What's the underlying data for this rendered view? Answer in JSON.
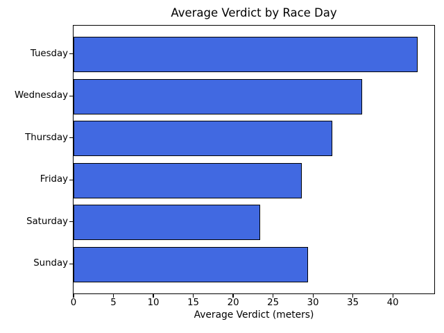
{
  "chart_data": {
    "type": "bar",
    "orientation": "horizontal",
    "title": "Average Verdict by Race Day",
    "xlabel": "Average Verdict (meters)",
    "categories": [
      "Tuesday",
      "Wednesday",
      "Thursday",
      "Friday",
      "Saturday",
      "Sunday"
    ],
    "values": [
      43.0,
      36.1,
      32.3,
      28.5,
      23.3,
      29.3
    ],
    "xlim": [
      0,
      45.2
    ],
    "xticks": [
      0,
      5,
      10,
      15,
      20,
      25,
      30,
      35,
      40
    ],
    "grid": false,
    "legend_position": "none",
    "colors": {
      "bar_fill": "#4169E1",
      "bar_edge": "#000000",
      "axis": "#000000",
      "text": "#000000",
      "background": "#FFFFFF"
    }
  }
}
